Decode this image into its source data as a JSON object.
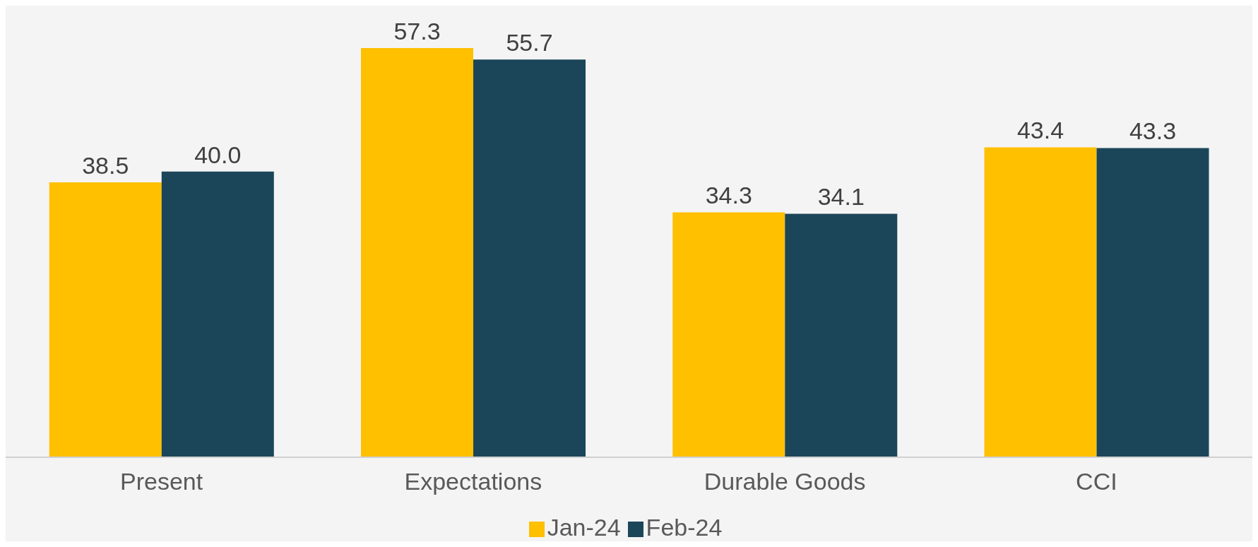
{
  "chart_data": {
    "type": "bar",
    "categories": [
      "Present",
      "Expectations",
      "Durable Goods",
      "CCI"
    ],
    "series": [
      {
        "name": "Jan-24",
        "color": "#ffc000",
        "values": [
          38.5,
          57.3,
          34.3,
          43.4
        ],
        "value_labels": [
          "38.5",
          "57.3",
          "34.3",
          "43.4"
        ]
      },
      {
        "name": "Feb-24",
        "color": "#1b4659",
        "values": [
          40.0,
          55.7,
          34.1,
          43.3
        ],
        "value_labels": [
          "40.0",
          "55.7",
          "34.1",
          "43.3"
        ]
      }
    ],
    "legend": "bottom"
  }
}
